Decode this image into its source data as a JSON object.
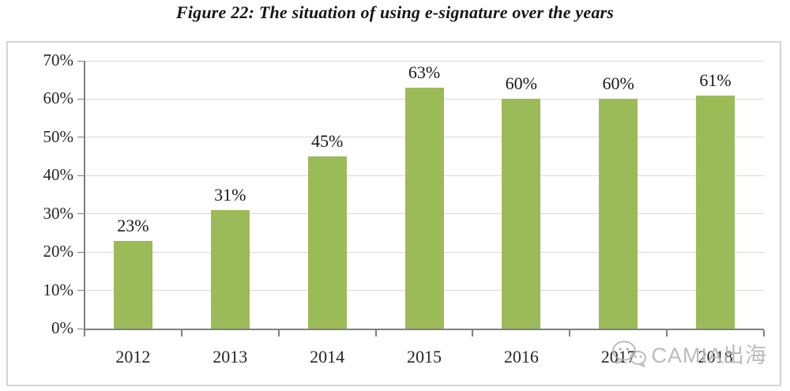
{
  "title": "Figure 22: The situation of using e-signature over the years",
  "watermark": {
    "text": "CAMIA出海",
    "icon": "wechat-icon"
  },
  "colors": {
    "bar": "#9bbb59",
    "grid": "#d9d9d9",
    "axis": "#7f7f7f",
    "label_text": "#1a1a1a",
    "tick_text": "#262626",
    "box_border": "#d4d4d4",
    "watermark": "#aaaaaa"
  },
  "chart_data": {
    "type": "bar",
    "title": "Figure 22: The situation of using e-signature over the years",
    "categories": [
      "2012",
      "2013",
      "2014",
      "2015",
      "2016",
      "2017",
      "2018"
    ],
    "values": [
      23,
      31,
      45,
      63,
      60,
      60,
      61
    ],
    "value_labels": [
      "23%",
      "31%",
      "45%",
      "63%",
      "60%",
      "60%",
      "61%"
    ],
    "xlabel": "",
    "ylabel": "",
    "ylim": [
      0,
      70
    ],
    "ytick_step": 10,
    "yticks": [
      0,
      10,
      20,
      30,
      40,
      50,
      60,
      70
    ],
    "ytick_labels": [
      "0%",
      "10%",
      "20%",
      "30%",
      "40%",
      "50%",
      "60%",
      "70%"
    ],
    "grid": true,
    "legend": false
  }
}
